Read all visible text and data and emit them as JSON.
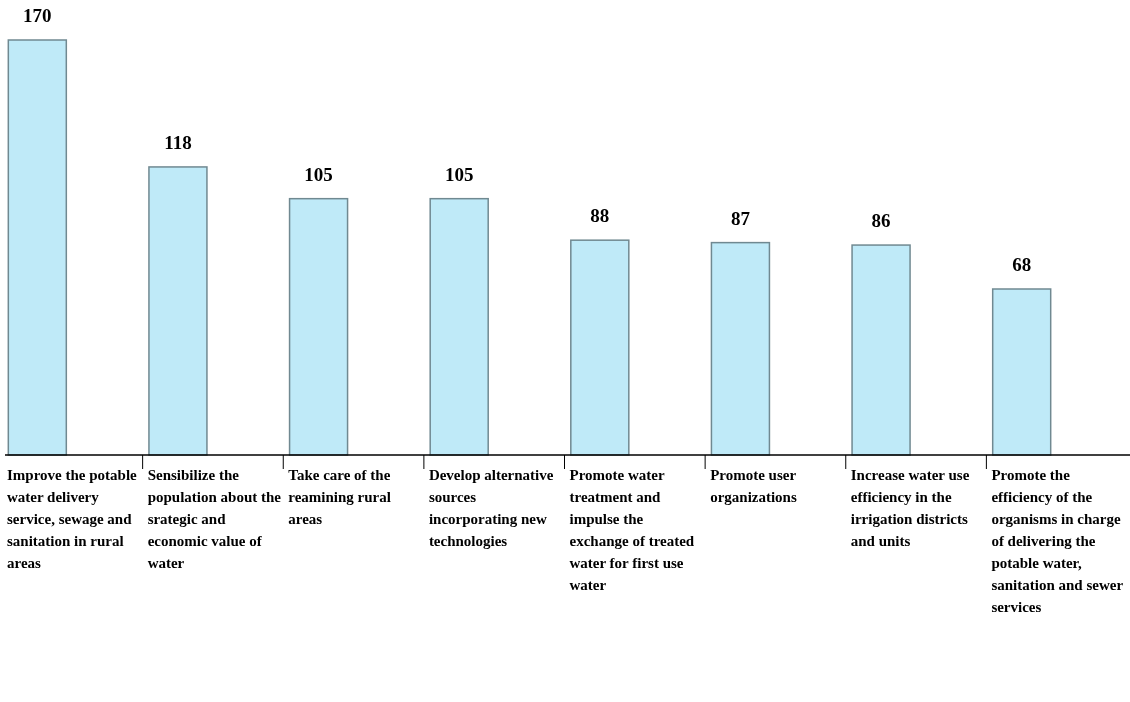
{
  "chart_data": {
    "type": "bar",
    "categories": [
      "Improve the potable water delivery service, sewage and sanitation in rural areas",
      "Sensibilize the population about the srategic and economic value of water",
      "Take care of the reamining rural areas",
      "Develop alternative sources incorporating new technologies",
      "Promote water treatment and impulse the exchange of treated water for first use water",
      "Promote user organizations",
      "Increase water use efficiency in the irrigation districts and units",
      "Promote the efficiency of the organisms in charge of delivering the potable water, sanitation and sewer services"
    ],
    "values": [
      170,
      118,
      105,
      105,
      88,
      87,
      86,
      68
    ],
    "color": "#bfeaf8",
    "data_labels": true
  }
}
